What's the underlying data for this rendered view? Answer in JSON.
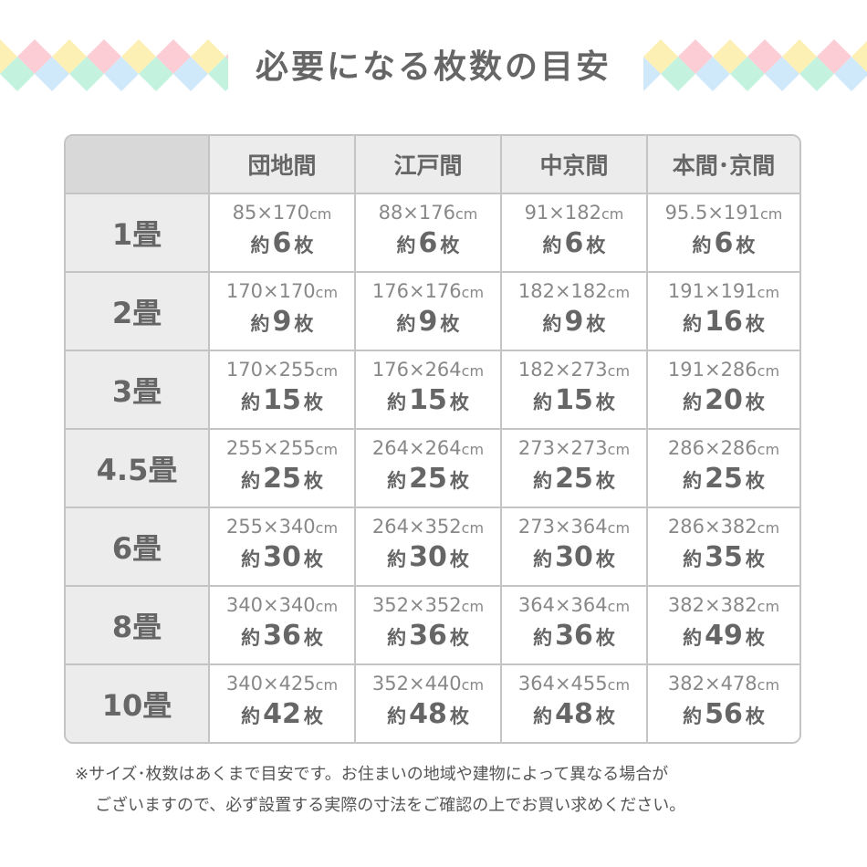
{
  "title": "必要になる枚数の目安",
  "colors": {
    "pink": "#fccdd5",
    "yellow": "#fdf0b5",
    "mint": "#c3f2df",
    "blue": "#cfe8fa",
    "border": "#c4c4c4",
    "header_bg": "#ececec"
  },
  "units": {
    "cm": "cm",
    "approx": "約",
    "sheets": "枚"
  },
  "columns": [
    "団地間",
    "江戸間",
    "中京間",
    "本間･京間"
  ],
  "rows": [
    {
      "label": "1畳",
      "cells": [
        {
          "dim": "85×170",
          "count": "6"
        },
        {
          "dim": "88×176",
          "count": "6"
        },
        {
          "dim": "91×182",
          "count": "6"
        },
        {
          "dim": "95.5×191",
          "count": "6"
        }
      ]
    },
    {
      "label": "2畳",
      "cells": [
        {
          "dim": "170×170",
          "count": "9"
        },
        {
          "dim": "176×176",
          "count": "9"
        },
        {
          "dim": "182×182",
          "count": "9"
        },
        {
          "dim": "191×191",
          "count": "16"
        }
      ]
    },
    {
      "label": "3畳",
      "cells": [
        {
          "dim": "170×255",
          "count": "15"
        },
        {
          "dim": "176×264",
          "count": "15"
        },
        {
          "dim": "182×273",
          "count": "15"
        },
        {
          "dim": "191×286",
          "count": "20"
        }
      ]
    },
    {
      "label": "4.5畳",
      "cells": [
        {
          "dim": "255×255",
          "count": "25"
        },
        {
          "dim": "264×264",
          "count": "25"
        },
        {
          "dim": "273×273",
          "count": "25"
        },
        {
          "dim": "286×286",
          "count": "25"
        }
      ]
    },
    {
      "label": "6畳",
      "cells": [
        {
          "dim": "255×340",
          "count": "30"
        },
        {
          "dim": "264×352",
          "count": "30"
        },
        {
          "dim": "273×364",
          "count": "30"
        },
        {
          "dim": "286×382",
          "count": "35"
        }
      ]
    },
    {
      "label": "8畳",
      "cells": [
        {
          "dim": "340×340",
          "count": "36"
        },
        {
          "dim": "352×352",
          "count": "36"
        },
        {
          "dim": "364×364",
          "count": "36"
        },
        {
          "dim": "382×382",
          "count": "49"
        }
      ]
    },
    {
      "label": "10畳",
      "cells": [
        {
          "dim": "340×425",
          "count": "42"
        },
        {
          "dim": "352×440",
          "count": "48"
        },
        {
          "dim": "364×455",
          "count": "48"
        },
        {
          "dim": "382×478",
          "count": "56"
        }
      ]
    }
  ],
  "note": {
    "line1": "※サイズ･枚数はあくまで目安です。お住まいの地域や建物によって異なる場合が",
    "line2": "ございますので、必ず設置する実際の寸法をご確認の上でお買い求めください。"
  }
}
